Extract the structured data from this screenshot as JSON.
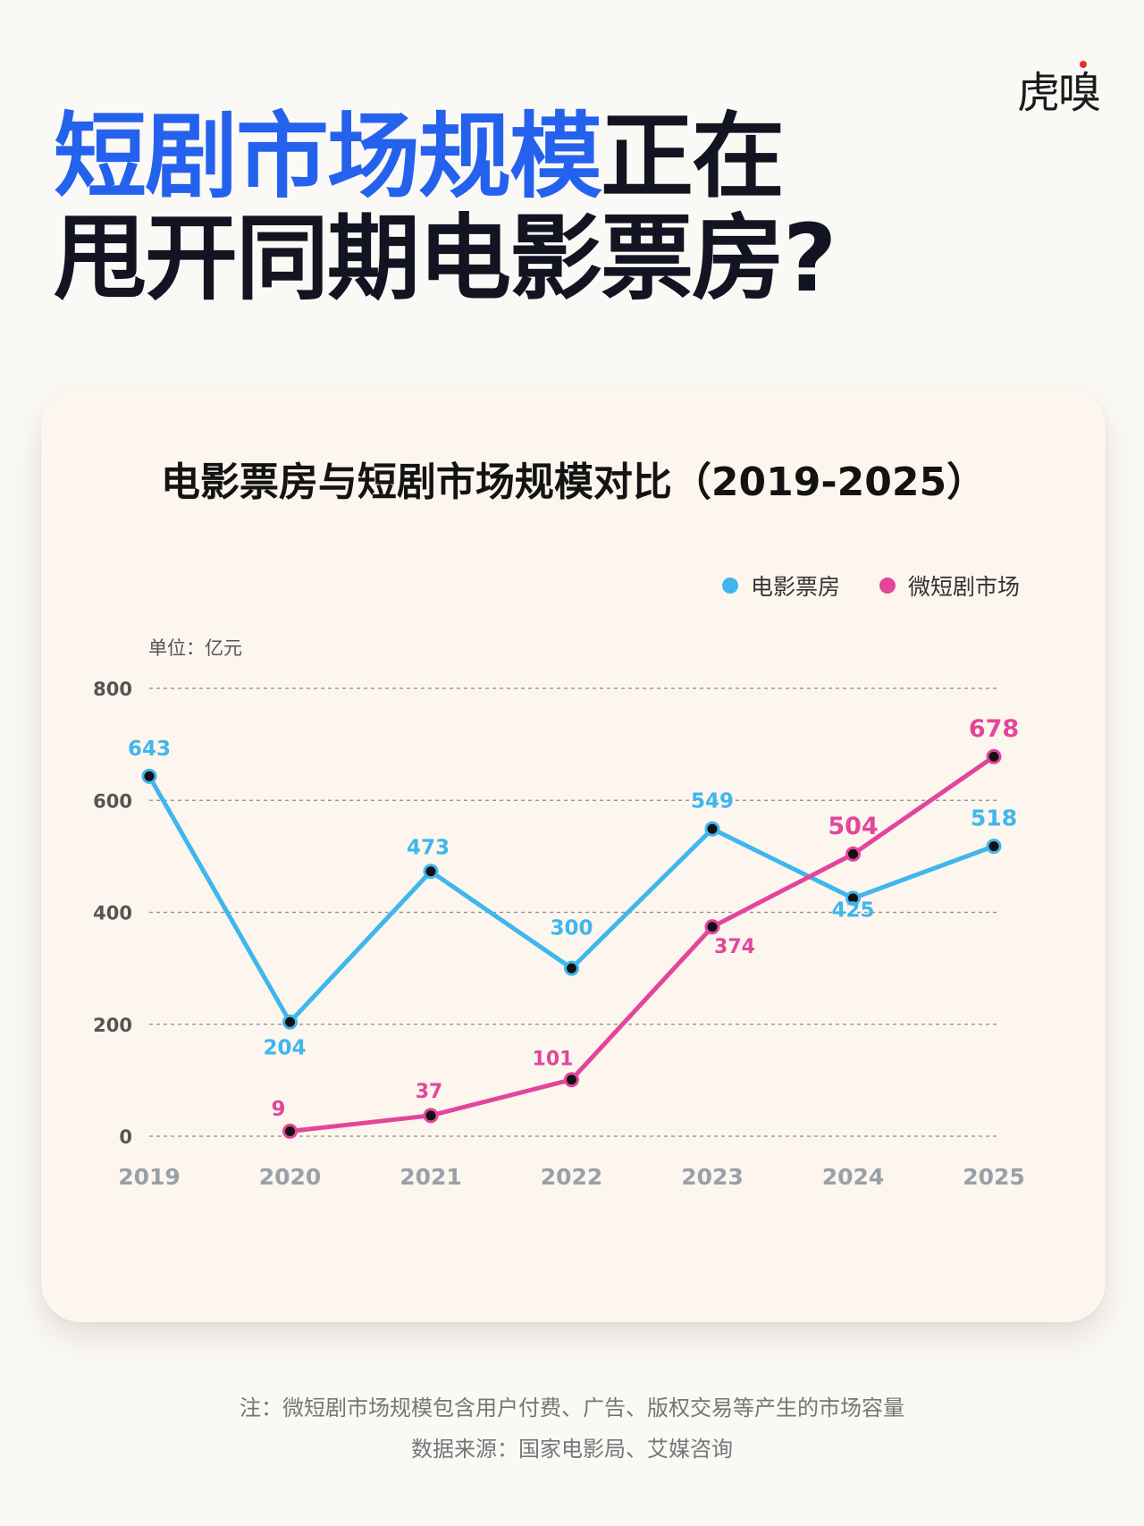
{
  "logo": "虎嗅",
  "headline": {
    "line1_accent": "短剧市场规模",
    "line1_rest": "正在",
    "line2": "甩开同期电影票房?"
  },
  "note": "注：微短剧市场规模包含用户付费、广告、版权交易等产生的市场容量",
  "source": "数据来源：国家电影局、艾媒咨询",
  "colors": {
    "accent": "#2462ee",
    "box_office": "#3fb6ee",
    "short_drama": "#e2469c"
  },
  "chart_data": {
    "type": "line",
    "title": "电影票房与短剧市场规模对比（2019-2025）",
    "unit_label": "单位：亿元",
    "x": [
      "2019",
      "2020",
      "2021",
      "2022",
      "2023",
      "2024",
      "2025"
    ],
    "ylim": [
      0,
      800
    ],
    "yticks": [
      0,
      200,
      400,
      600,
      800
    ],
    "grid": "horizontal-dashed",
    "legend_position": "top-right",
    "series": [
      {
        "name": "电影票房",
        "color": "#3fb6ee",
        "values": [
          643,
          204,
          473,
          300,
          549,
          425,
          518
        ]
      },
      {
        "name": "微短剧市场",
        "color": "#e2469c",
        "values": [
          null,
          9,
          37,
          101,
          374,
          504,
          678
        ]
      }
    ]
  }
}
